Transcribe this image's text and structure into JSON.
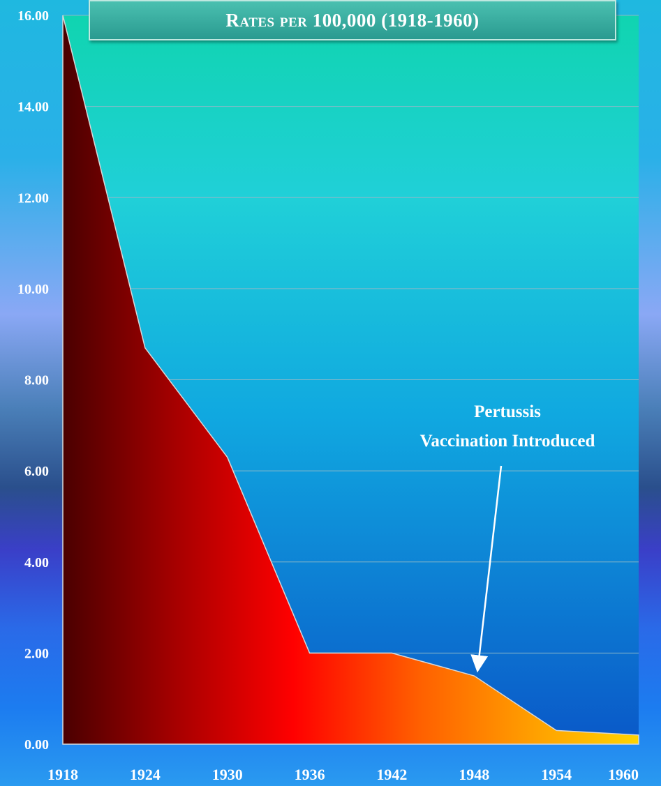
{
  "chart_data": {
    "type": "area",
    "title": "Rates per 100,000 (1918-1960)",
    "x": [
      1918,
      1924,
      1930,
      1936,
      1942,
      1948,
      1954,
      1960
    ],
    "series": [
      {
        "values": [
          16.0,
          8.7,
          6.3,
          2.0,
          2.0,
          1.5,
          0.3,
          0.2
        ]
      }
    ],
    "x_ticks": [
      "1918",
      "1924",
      "1930",
      "1936",
      "1942",
      "1948",
      "1954",
      "1960"
    ],
    "y_ticks": [
      "0.00",
      "2.00",
      "4.00",
      "6.00",
      "8.00",
      "10.00",
      "12.00",
      "14.00",
      "16.00"
    ],
    "xlim": [
      1918,
      1960
    ],
    "ylim": [
      0,
      16
    ],
    "grid": true,
    "annotation": {
      "lines": [
        "Pertussis",
        "Vaccination Introduced"
      ],
      "x": 1948,
      "y": 1.7
    },
    "colors": {
      "area_start": "#5a0000",
      "area_mid1": "#b00000",
      "area_mid2": "#ff0000",
      "area_mid3": "#ff8000",
      "area_end": "#ffd000",
      "plot_top": "#10d4b0",
      "plot_bottom": "#0a58c8",
      "gridline": "#8ab8c8"
    }
  }
}
